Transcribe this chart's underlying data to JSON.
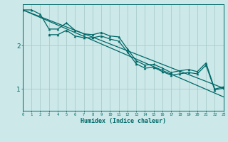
{
  "xlabel": "Humidex (Indice chaleur)",
  "bg_color": "#cce8e8",
  "grid_color": "#aacccc",
  "line_color": "#006868",
  "x_range": [
    0,
    23
  ],
  "y_range": [
    0.5,
    2.95
  ],
  "y_ticks": [
    1,
    2
  ],
  "x_data1": [
    0,
    1,
    2,
    3,
    4,
    5,
    6,
    7,
    8,
    9,
    10,
    11,
    12,
    13,
    14,
    15,
    16,
    17,
    18,
    19,
    20,
    21,
    22,
    23
  ],
  "y_data1": [
    2.82,
    2.82,
    2.72,
    2.38,
    2.38,
    2.52,
    2.35,
    2.27,
    2.25,
    2.3,
    2.22,
    2.2,
    1.92,
    1.65,
    1.55,
    1.57,
    1.48,
    1.38,
    1.42,
    1.45,
    1.4,
    1.6,
    1.0,
    1.05
  ],
  "x_data2": [
    3,
    4,
    5,
    6,
    7,
    8,
    9,
    10,
    11,
    12,
    13,
    14,
    15,
    16,
    17,
    18,
    19,
    20,
    21,
    22,
    23
  ],
  "y_data2": [
    2.25,
    2.25,
    2.35,
    2.22,
    2.18,
    2.18,
    2.22,
    2.15,
    2.1,
    1.85,
    1.58,
    1.48,
    1.5,
    1.4,
    1.32,
    1.35,
    1.38,
    1.35,
    1.55,
    0.98,
    1.02
  ],
  "trend1_x": [
    0,
    23
  ],
  "trend1_y": [
    2.82,
    1.02
  ],
  "trend2_x": [
    0,
    23
  ],
  "trend2_y": [
    2.82,
    0.82
  ]
}
